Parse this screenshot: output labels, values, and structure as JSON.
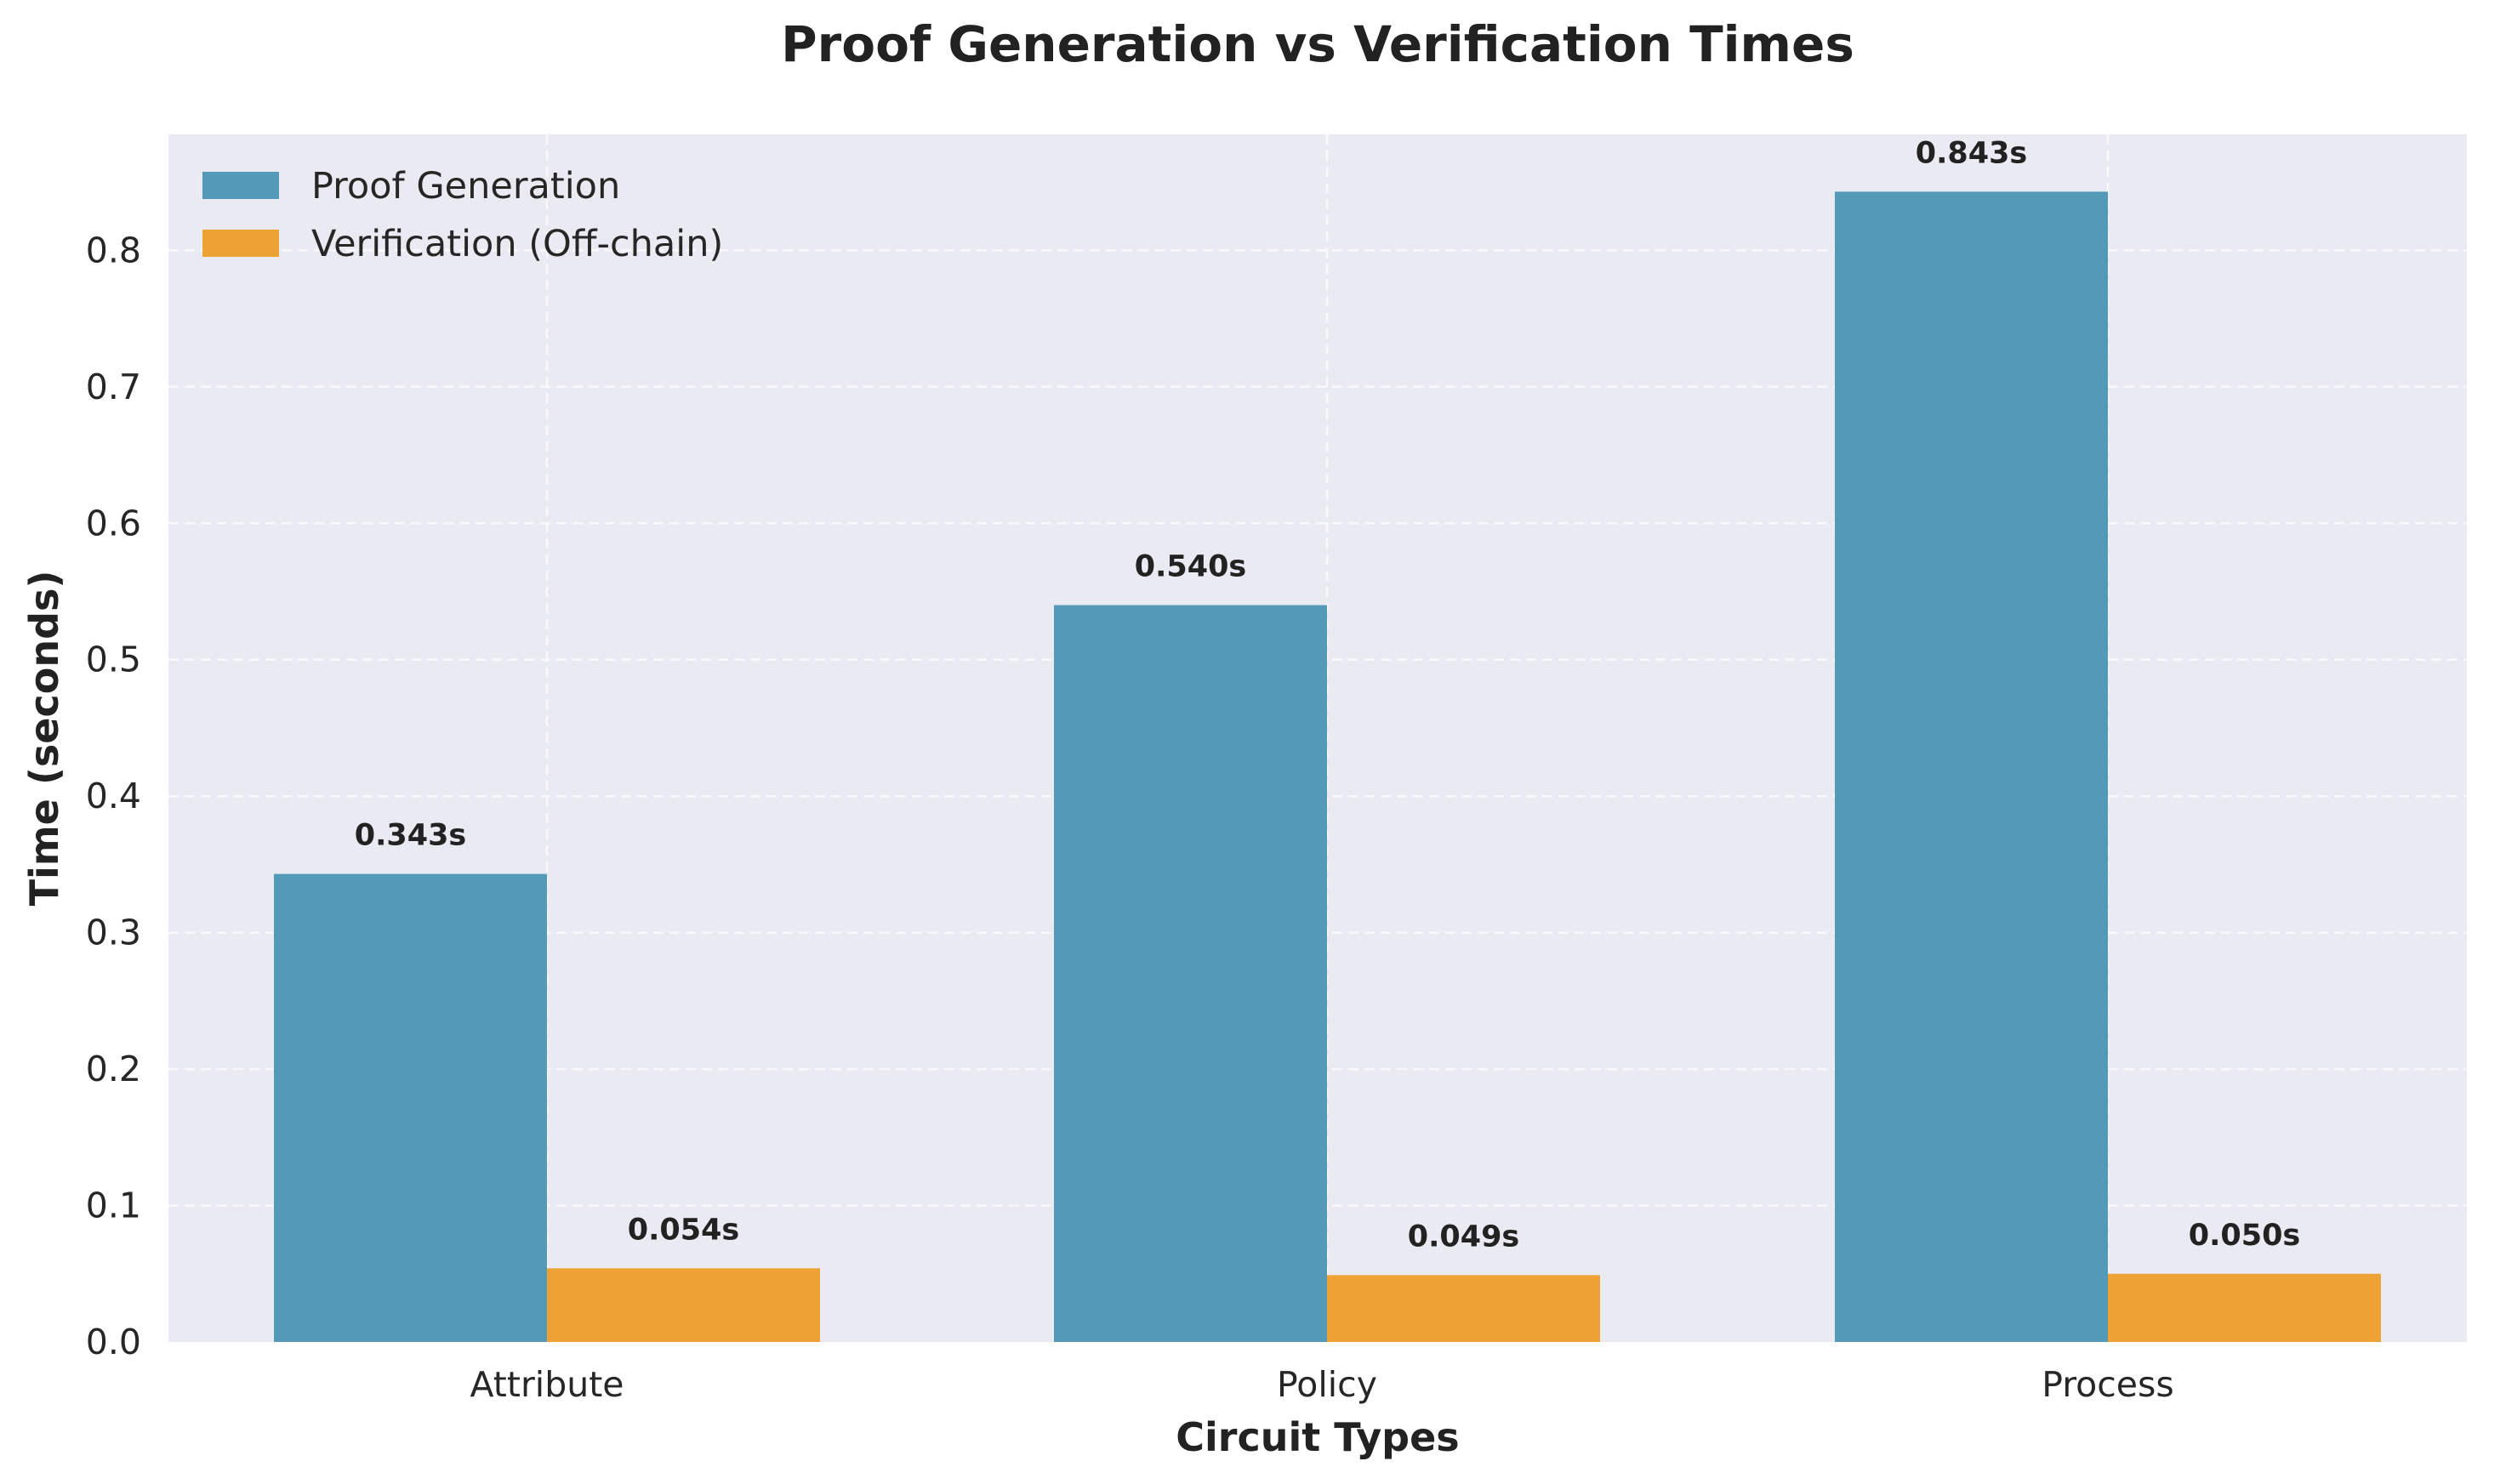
{
  "colors": {
    "plot_background": "#EAEAF2",
    "proof_generation": "#5399B8",
    "verification": "#EEA135"
  },
  "chart_data": {
    "type": "bar",
    "title": "Proof Generation vs Verification Times",
    "xlabel": "Circuit Types",
    "ylabel": "Time (seconds)",
    "categories": [
      "Attribute",
      "Policy",
      "Process"
    ],
    "series": [
      {
        "name": "Proof Generation",
        "color": "#5399B8",
        "values": [
          0.343,
          0.54,
          0.843
        ],
        "labels": [
          "0.343s",
          "0.540s",
          "0.843s"
        ]
      },
      {
        "name": "Verification (Off-chain)",
        "color": "#EEA135",
        "values": [
          0.054,
          0.049,
          0.05
        ],
        "labels": [
          "0.054s",
          "0.049s",
          "0.050s"
        ]
      }
    ],
    "ylim": [
      0,
      0.885
    ],
    "yticks": [
      0.0,
      0.1,
      0.2,
      0.3,
      0.4,
      0.5,
      0.6,
      0.7,
      0.8
    ],
    "ytick_labels": [
      "0.0",
      "0.1",
      "0.2",
      "0.3",
      "0.4",
      "0.5",
      "0.6",
      "0.7",
      "0.8"
    ],
    "grid": true,
    "legend_position": "top-left"
  }
}
